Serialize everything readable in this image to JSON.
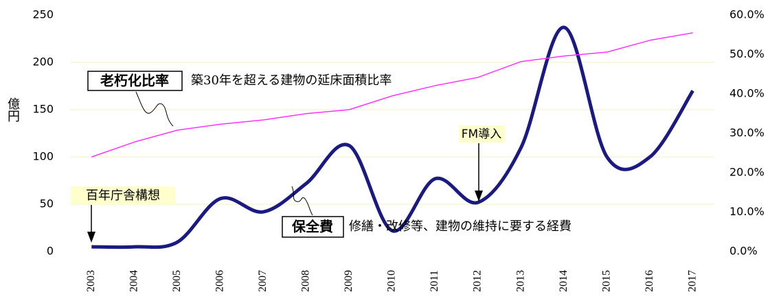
{
  "chart_data": {
    "type": "line",
    "categories": [
      "2003",
      "2004",
      "2005",
      "2006",
      "2007",
      "2008",
      "2009",
      "2010",
      "2011",
      "2012",
      "2013",
      "2014",
      "2015",
      "2016",
      "2017"
    ],
    "y_label": "億円",
    "ylim": [
      0,
      250
    ],
    "yticks": [
      0,
      50,
      100,
      150,
      200,
      250
    ],
    "y2lim": [
      0,
      60
    ],
    "y2ticks": [
      {
        "value": 0,
        "label": "0.0%"
      },
      {
        "value": 10,
        "label": "10.0%"
      },
      {
        "value": 20,
        "label": "20.0%"
      },
      {
        "value": 30,
        "label": "30.0%"
      },
      {
        "value": 40,
        "label": "40.0%"
      },
      {
        "value": 50,
        "label": "50.0%"
      },
      {
        "value": 60,
        "label": "60.0%"
      }
    ],
    "grid": true,
    "series": [
      {
        "name": "保全費",
        "color": "#1a1a80",
        "values": [
          5,
          5,
          10,
          56,
          42,
          72,
          112,
          22,
          77,
          52,
          110,
          237,
          100,
          100,
          170
        ]
      },
      {
        "name": "老朽化比率",
        "color": "#ff33ff",
        "axis": "y2",
        "values": [
          24.0,
          27.8,
          30.8,
          32.3,
          33.4,
          35.0,
          36.0,
          39.5,
          42.1,
          44.2,
          48.2,
          49.6,
          50.6,
          53.6,
          55.5
        ]
      }
    ],
    "annotations": [
      "修繕・改修等、建物の維持に要する経費",
      "築30年を超える建物の延床面積比率",
      "百年庁舎構想",
      "FM導入"
    ]
  }
}
